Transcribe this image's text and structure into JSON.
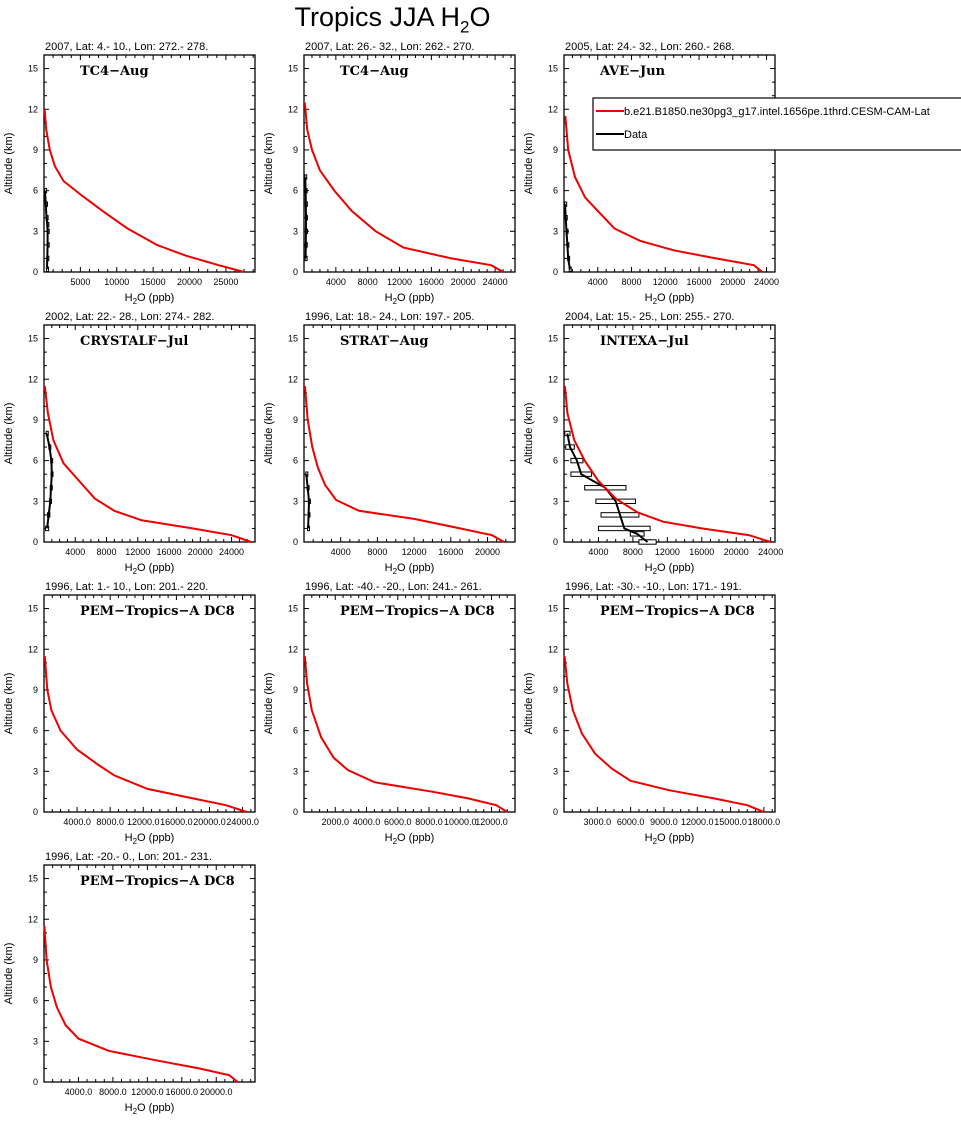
{
  "figure": {
    "title_prefix": "Tropics JJA H",
    "title_sub": "2",
    "title_suffix": "O"
  },
  "legend": {
    "model_label": "b.e21.B1850.ne30pg3_g17.intel.1656pe.1thrd.CESM-CAM-Lat",
    "data_label": "Data",
    "model_color": "#ee0000",
    "data_color": "#000000"
  },
  "chart_data": [
    {
      "type": "line",
      "subtitle": "2007, Lat: 4.- 10., Lon: 272.- 278.",
      "experiment": "TC4−Aug",
      "ylabel": "Altitude (km)",
      "xlabel_prefix": "H",
      "xlabel_sub": "2",
      "xlabel_suffix": "O (ppb)",
      "xlim": [
        0,
        29000
      ],
      "ylim": [
        0,
        16
      ],
      "xticks": [
        5000,
        10000,
        15000,
        20000,
        25000
      ],
      "xtick_labels": [
        "5000",
        "10000",
        "15000",
        "20000",
        "25000"
      ],
      "yticks": [
        0,
        3,
        6,
        9,
        12,
        15
      ],
      "ytick_labels": [
        "0",
        "3",
        "6",
        "9",
        "12",
        "15"
      ],
      "model": {
        "x": [
          27500,
          24000,
          19500,
          15500,
          11500,
          8300,
          5300,
          2700,
          1500,
          800,
          300,
          80
        ],
        "y": [
          0,
          0.5,
          1.2,
          2,
          3.2,
          4.4,
          5.6,
          6.7,
          7.8,
          9,
          10.5,
          12
        ]
      },
      "obs": {
        "x": [
          400,
          450,
          500,
          500,
          450,
          350,
          250,
          120
        ],
        "y": [
          0.2,
          1,
          2,
          3,
          3.5,
          4,
          5,
          6
        ],
        "xerr": [
          60,
          60,
          60,
          60,
          60,
          60,
          50,
          40
        ]
      }
    },
    {
      "type": "line",
      "subtitle": "2007, Lat: 26.- 32., Lon: 262.- 270.",
      "experiment": "TC4−Aug",
      "ylabel": "Altitude (km)",
      "xlabel_prefix": "H",
      "xlabel_sub": "2",
      "xlabel_suffix": "O (ppb)",
      "xlim": [
        0,
        26500
      ],
      "ylim": [
        0,
        16
      ],
      "xticks": [
        4000,
        8000,
        12000,
        16000,
        20000,
        24000
      ],
      "xtick_labels": [
        "4000",
        "8000",
        "12000",
        "16000",
        "20000",
        "24000"
      ],
      "yticks": [
        0,
        3,
        6,
        9,
        12,
        15
      ],
      "ytick_labels": [
        "0",
        "3",
        "6",
        "9",
        "12",
        "15"
      ],
      "model": {
        "x": [
          25000,
          23500,
          18500,
          12500,
          9000,
          6000,
          3800,
          2000,
          1000,
          400,
          100
        ],
        "y": [
          0,
          0.5,
          1,
          1.8,
          3,
          4.5,
          6,
          7.5,
          9,
          10.5,
          12.5
        ]
      },
      "obs": {
        "x": [
          200,
          220,
          240,
          250,
          230,
          200,
          150
        ],
        "y": [
          1,
          2,
          3,
          4,
          5,
          6,
          7
        ],
        "xerr": [
          60,
          60,
          60,
          60,
          60,
          60,
          60
        ]
      }
    },
    {
      "type": "line",
      "subtitle": "2005, Lat: 24.- 32., Lon: 260.- 268.",
      "experiment": "AVE−Jun",
      "ylabel": "Altitude (km)",
      "xlabel_prefix": "H",
      "xlabel_sub": "2",
      "xlabel_suffix": "O (ppb)",
      "xlim": [
        0,
        25000
      ],
      "ylim": [
        0,
        16
      ],
      "xticks": [
        4000,
        8000,
        12000,
        16000,
        20000,
        24000
      ],
      "xtick_labels": [
        "4000",
        "8000",
        "12000",
        "16000",
        "20000",
        "24000"
      ],
      "yticks": [
        0,
        3,
        6,
        9,
        12,
        15
      ],
      "ytick_labels": [
        "0",
        "3",
        "6",
        "9",
        "12",
        "15"
      ],
      "model": {
        "x": [
          23500,
          22500,
          18000,
          13000,
          9000,
          6000,
          4000,
          2500,
          1300,
          500,
          150
        ],
        "y": [
          0,
          0.5,
          1,
          1.6,
          2.3,
          3.2,
          4.5,
          5.5,
          7,
          9,
          11.5
        ]
      },
      "obs": {
        "x": [
          700,
          500,
          400,
          300,
          200,
          120
        ],
        "y": [
          0.2,
          1,
          2,
          3,
          4,
          5
        ],
        "xerr": [
          80,
          70,
          60,
          60,
          50,
          40
        ]
      }
    },
    {
      "type": "line",
      "subtitle": "2002, Lat: 22.- 28., Lon: 274.- 282.",
      "experiment": "CRYSTALF−Jul",
      "ylabel": "Altitude (km)",
      "xlabel_prefix": "H",
      "xlabel_sub": "2",
      "xlabel_suffix": "O (ppb)",
      "xlim": [
        0,
        27000
      ],
      "ylim": [
        0,
        16
      ],
      "xticks": [
        4000,
        8000,
        12000,
        16000,
        20000,
        24000
      ],
      "xtick_labels": [
        "4000",
        "8000",
        "12000",
        "16000",
        "20000",
        "24000"
      ],
      "yticks": [
        0,
        3,
        6,
        9,
        12,
        15
      ],
      "ytick_labels": [
        "0",
        "3",
        "6",
        "9",
        "12",
        "15"
      ],
      "model": {
        "x": [
          26500,
          24000,
          19000,
          12500,
          9000,
          6500,
          4500,
          2500,
          1200,
          500,
          100
        ],
        "y": [
          0,
          0.5,
          1,
          1.6,
          2.3,
          3.2,
          4.5,
          5.8,
          7.5,
          9.5,
          11.5
        ]
      },
      "obs": {
        "x": [
          400,
          600,
          800,
          900,
          1000,
          950,
          700,
          350
        ],
        "y": [
          1,
          2,
          3,
          4,
          5,
          6,
          7,
          8
        ],
        "xerr": [
          200,
          150,
          100,
          100,
          100,
          100,
          80,
          60
        ]
      }
    },
    {
      "type": "line",
      "subtitle": "1996, Lat: 18.- 24., Lon: 197.- 205.",
      "experiment": "STRAT−Aug",
      "ylabel": "Altitude (km)",
      "xlabel_prefix": "H",
      "xlabel_sub": "2",
      "xlabel_suffix": "O (ppb)",
      "xlim": [
        0,
        23000
      ],
      "ylim": [
        0,
        16
      ],
      "xticks": [
        4000,
        8000,
        12000,
        16000,
        20000
      ],
      "xtick_labels": [
        "4000",
        "8000",
        "12000",
        "16000",
        "20000"
      ],
      "yticks": [
        0,
        3,
        6,
        9,
        12,
        15
      ],
      "ytick_labels": [
        "0",
        "3",
        "6",
        "9",
        "12",
        "15"
      ],
      "model": {
        "x": [
          21800,
          20500,
          17000,
          12000,
          6000,
          3500,
          2300,
          1500,
          900,
          400,
          100
        ],
        "y": [
          0,
          0.5,
          1,
          1.7,
          2.3,
          3.1,
          4.2,
          5.5,
          7,
          9,
          11.5
        ]
      },
      "obs": {
        "x": [
          450,
          500,
          550,
          400,
          250
        ],
        "y": [
          1,
          2,
          3,
          4,
          5
        ],
        "xerr": [
          70,
          70,
          70,
          60,
          50
        ]
      }
    },
    {
      "type": "line",
      "subtitle": "2004, Lat: 15.- 25., Lon: 255.- 270.",
      "experiment": "INTEXA−Jul",
      "ylabel": "Altitude (km)",
      "xlabel_prefix": "H",
      "xlabel_sub": "2",
      "xlabel_suffix": "O (ppb)",
      "xlim": [
        0,
        24500
      ],
      "ylim": [
        0,
        16
      ],
      "xticks": [
        4000,
        8000,
        12000,
        16000,
        20000,
        24000
      ],
      "xtick_labels": [
        "4000",
        "8000",
        "12000",
        "16000",
        "20000",
        "24000"
      ],
      "yticks": [
        0,
        3,
        6,
        9,
        12,
        15
      ],
      "ytick_labels": [
        "0",
        "3",
        "6",
        "9",
        "12",
        "15"
      ],
      "model": {
        "x": [
          24000,
          21500,
          16000,
          11500,
          8500,
          6000,
          4000,
          2400,
          1200,
          400,
          100
        ],
        "y": [
          0,
          0.5,
          1,
          1.5,
          2.2,
          3.2,
          4.5,
          6,
          7.5,
          9.5,
          11.5
        ]
      },
      "obs": {
        "x": [
          9700,
          8500,
          7000,
          6500,
          6000,
          4800,
          2000,
          1500,
          700,
          400
        ],
        "y": [
          0,
          0.6,
          1,
          2,
          3,
          4,
          5,
          6,
          7,
          8
        ],
        "xerr": [
          1000,
          800,
          3000,
          2200,
          2300,
          2400,
          1200,
          700,
          500,
          300
        ]
      }
    },
    {
      "type": "line",
      "subtitle": "1996, Lat: 1.- 10., Lon: 201.- 220.",
      "experiment": "PEM−Tropics−A DC8",
      "ylabel": "Altitude (km)",
      "xlabel_prefix": "H",
      "xlabel_sub": "2",
      "xlabel_suffix": "O (ppb)",
      "xlim": [
        0,
        25500
      ],
      "ylim": [
        0,
        16
      ],
      "xticks": [
        4000,
        8000,
        12000,
        16000,
        20000,
        24000
      ],
      "xtick_labels": [
        "4000.0",
        "8000.0",
        "12000.0",
        "16000.0",
        "20000.0",
        "24000.0"
      ],
      "yticks": [
        0,
        3,
        6,
        9,
        12,
        15
      ],
      "ytick_labels": [
        "0",
        "3",
        "6",
        "9",
        "12",
        "15"
      ],
      "model": {
        "x": [
          24500,
          22000,
          18000,
          12500,
          8500,
          6500,
          4000,
          2000,
          900,
          400,
          100
        ],
        "y": [
          0,
          0.5,
          1,
          1.7,
          2.7,
          3.5,
          4.6,
          6,
          7.5,
          9,
          11.5
        ]
      },
      "obs": null
    },
    {
      "type": "line",
      "subtitle": "1996, Lat: -40.- -20., Lon: 241.- 261.",
      "experiment": "PEM−Tropics−A DC8",
      "ylabel": "Altitude (km)",
      "xlabel_prefix": "H",
      "xlabel_sub": "2",
      "xlabel_suffix": "O (ppb)",
      "xlim": [
        0,
        13500
      ],
      "ylim": [
        0,
        16
      ],
      "xticks": [
        2000,
        4000,
        6000,
        8000,
        10000,
        12000
      ],
      "xtick_labels": [
        "2000.0",
        "4000.0",
        "6000.0",
        "8000.0",
        "10000.0",
        "12000.0"
      ],
      "yticks": [
        0,
        3,
        6,
        9,
        12,
        15
      ],
      "ytick_labels": [
        "0",
        "3",
        "6",
        "9",
        "12",
        "15"
      ],
      "model": {
        "x": [
          13000,
          12300,
          10500,
          8200,
          4500,
          2800,
          1900,
          1100,
          500,
          200,
          50
        ],
        "y": [
          0,
          0.5,
          1,
          1.5,
          2.2,
          3.1,
          4,
          5.5,
          7.5,
          9.5,
          11.5
        ]
      },
      "obs": null
    },
    {
      "type": "line",
      "subtitle": "1996, Lat: -30.- -10., Lon: 171.- 191.",
      "experiment": "PEM−Tropics−A DC8",
      "ylabel": "Altitude (km)",
      "xlabel_prefix": "H",
      "xlabel_sub": "2",
      "xlabel_suffix": "O (ppb)",
      "xlim": [
        0,
        19000
      ],
      "ylim": [
        0,
        16
      ],
      "xticks": [
        3000,
        6000,
        9000,
        12000,
        15000,
        18000
      ],
      "xtick_labels": [
        "3000.0",
        "6000.0",
        "9000.0",
        "12000.0",
        "15000.0",
        "18000.0"
      ],
      "yticks": [
        0,
        3,
        6,
        9,
        12,
        15
      ],
      "ytick_labels": [
        "0",
        "3",
        "6",
        "9",
        "12",
        "15"
      ],
      "model": {
        "x": [
          18000,
          16500,
          13500,
          9500,
          6000,
          4300,
          2800,
          1600,
          800,
          300,
          50
        ],
        "y": [
          0,
          0.5,
          1,
          1.6,
          2.3,
          3.2,
          4.3,
          5.8,
          7.5,
          9.5,
          11.5
        ]
      },
      "obs": null
    },
    {
      "type": "line",
      "subtitle": "1996, Lat: -20.- 0., Lon: 201.- 231.",
      "experiment": "PEM−Tropics−A DC8",
      "ylabel": "Altitude (km)",
      "xlabel_prefix": "H",
      "xlabel_sub": "2",
      "xlabel_suffix": "O (ppb)",
      "xlim": [
        0,
        24500
      ],
      "ylim": [
        0,
        16
      ],
      "xticks": [
        4000,
        8000,
        12000,
        16000,
        20000
      ],
      "xtick_labels": [
        "4000.0",
        "8000.0",
        "12000.0",
        "16000.0",
        "20000.0"
      ],
      "yticks": [
        0,
        3,
        6,
        9,
        12,
        15
      ],
      "ytick_labels": [
        "0",
        "3",
        "6",
        "9",
        "12",
        "15"
      ],
      "model": {
        "x": [
          22500,
          21500,
          18000,
          13000,
          7500,
          4000,
          2500,
          1500,
          800,
          300,
          50
        ],
        "y": [
          0,
          0.5,
          1,
          1.6,
          2.3,
          3.2,
          4.2,
          5.5,
          7,
          9,
          11.5
        ]
      },
      "obs": null
    }
  ]
}
